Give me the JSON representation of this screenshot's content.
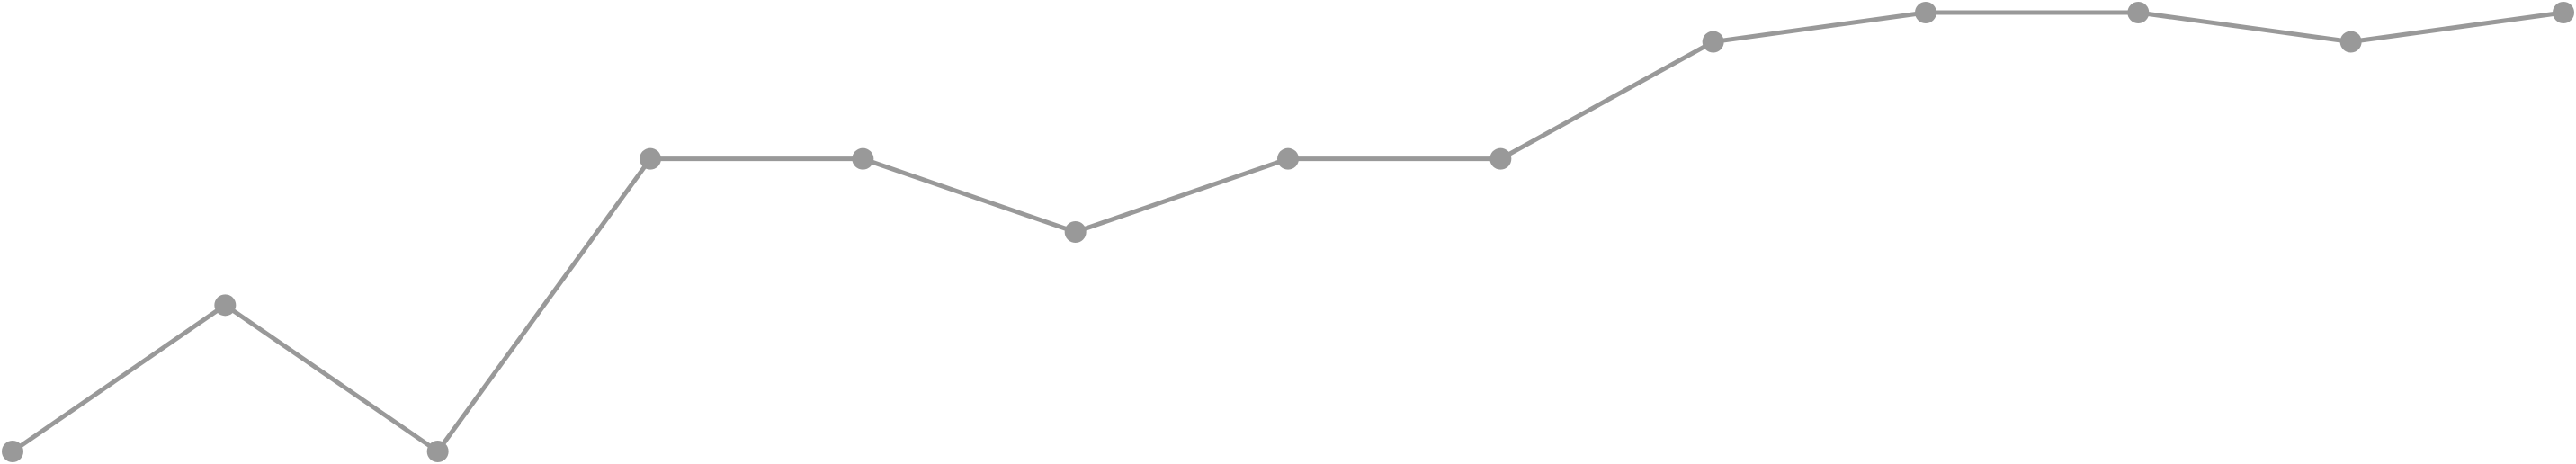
{
  "chart_data": {
    "type": "line",
    "title": "",
    "xlabel": "",
    "ylabel": "",
    "x": [
      1,
      2,
      3,
      4,
      5,
      6,
      7,
      8,
      9,
      10,
      11,
      12,
      13
    ],
    "series": [
      {
        "values": [
          0.0,
          1.0,
          0.0,
          2.0,
          2.0,
          1.5,
          2.0,
          2.0,
          2.8,
          3.0,
          3.0,
          2.8,
          3.0
        ]
      }
    ],
    "xlim": [
      1,
      13
    ],
    "ylim": [
      0,
      3
    ],
    "grid": false,
    "axes_visible": false,
    "line_color": "#999999",
    "marker_color": "#999999"
  }
}
